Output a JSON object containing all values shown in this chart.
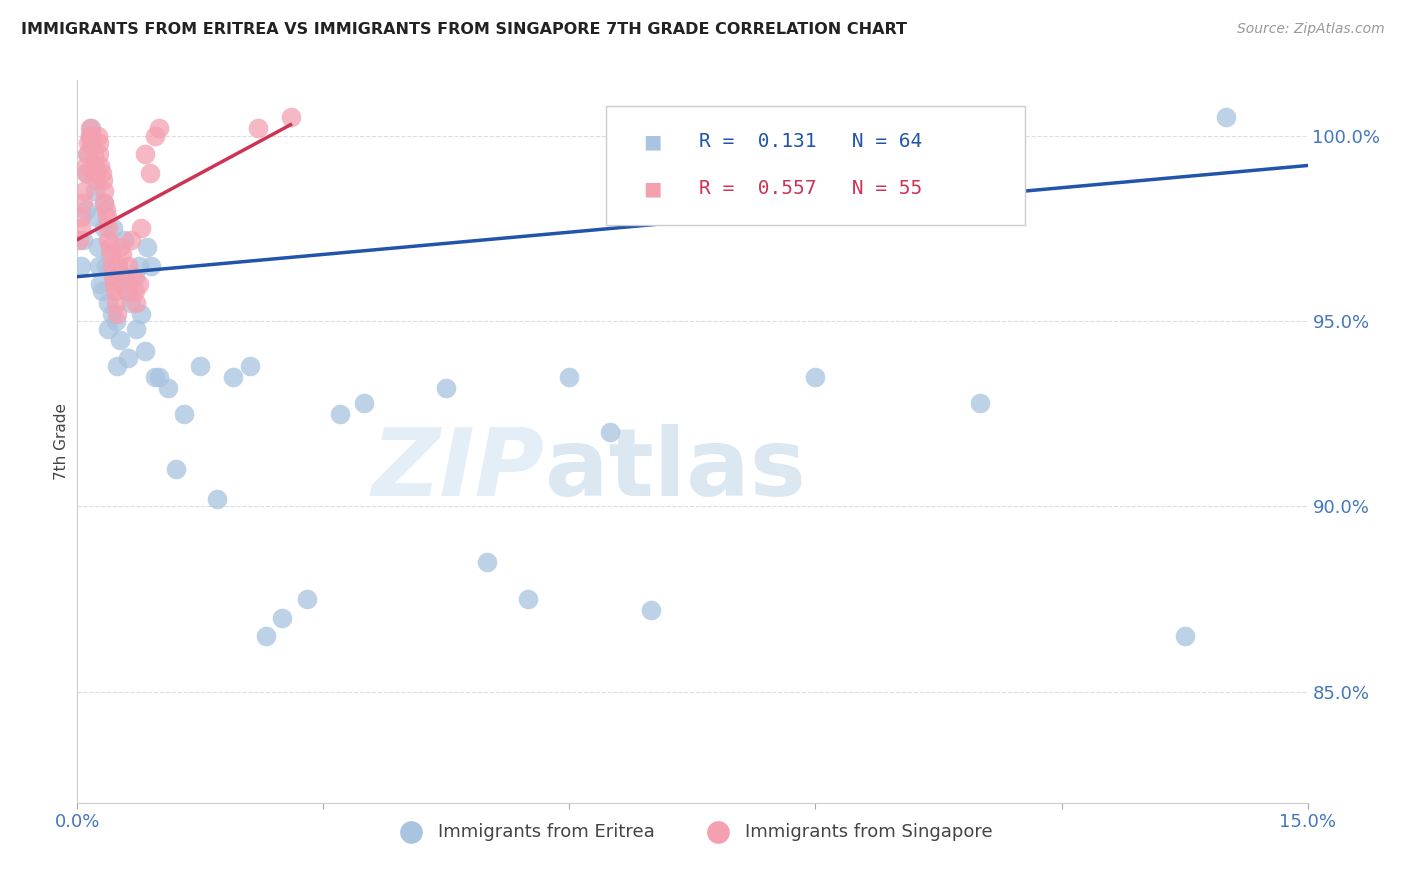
{
  "title": "IMMIGRANTS FROM ERITREA VS IMMIGRANTS FROM SINGAPORE 7TH GRADE CORRELATION CHART",
  "source": "Source: ZipAtlas.com",
  "ylabel": "7th Grade",
  "xlim": [
    0.0,
    15.0
  ],
  "ylim": [
    82.0,
    101.5
  ],
  "yticks": [
    85.0,
    90.0,
    95.0,
    100.0
  ],
  "ytick_labels": [
    "85.0%",
    "90.0%",
    "95.0%",
    "100.0%"
  ],
  "legend_eritrea": "Immigrants from Eritrea",
  "legend_singapore": "Immigrants from Singapore",
  "R_eritrea": 0.131,
  "N_eritrea": 64,
  "R_singapore": 0.557,
  "N_singapore": 55,
  "color_eritrea": "#a8c4e0",
  "color_singapore": "#f4a0b0",
  "color_line_eritrea": "#2255aa",
  "color_line_singapore": "#cc3355",
  "watermark_zip": "ZIP",
  "watermark_atlas": "atlas",
  "line_eritrea_x0": 0.0,
  "line_eritrea_y0": 96.2,
  "line_eritrea_x1": 15.0,
  "line_eritrea_y1": 99.2,
  "line_singapore_x0": 0.0,
  "line_singapore_y0": 97.2,
  "line_singapore_x1": 2.6,
  "line_singapore_y1": 100.3,
  "eritrea_x": [
    0.05,
    0.07,
    0.1,
    0.12,
    0.13,
    0.15,
    0.17,
    0.18,
    0.2,
    0.22,
    0.23,
    0.25,
    0.27,
    0.28,
    0.3,
    0.32,
    0.33,
    0.35,
    0.37,
    0.38,
    0.4,
    0.42,
    0.43,
    0.45,
    0.47,
    0.48,
    0.5,
    0.52,
    0.55,
    0.57,
    0.6,
    0.62,
    0.65,
    0.7,
    0.72,
    0.75,
    0.78,
    0.82,
    0.85,
    0.9,
    0.95,
    1.0,
    1.1,
    1.2,
    1.3,
    1.5,
    1.7,
    1.9,
    2.1,
    2.3,
    2.5,
    2.8,
    3.2,
    3.5,
    4.5,
    5.0,
    5.5,
    6.0,
    6.5,
    7.0,
    9.0,
    11.0,
    13.5,
    14.0
  ],
  "eritrea_y": [
    96.5,
    97.2,
    98.0,
    99.0,
    99.5,
    100.0,
    100.2,
    99.8,
    99.2,
    98.5,
    97.8,
    97.0,
    96.5,
    96.0,
    95.8,
    97.5,
    98.2,
    96.5,
    95.5,
    94.8,
    96.8,
    95.2,
    97.5,
    96.2,
    95.0,
    93.8,
    96.5,
    94.5,
    96.0,
    97.2,
    95.8,
    94.0,
    95.5,
    96.2,
    94.8,
    96.5,
    95.2,
    94.2,
    97.0,
    96.5,
    93.5,
    93.5,
    93.2,
    91.0,
    92.5,
    93.8,
    90.2,
    93.5,
    93.8,
    86.5,
    87.0,
    87.5,
    92.5,
    92.8,
    93.2,
    88.5,
    87.5,
    93.5,
    92.0,
    87.2,
    93.5,
    92.8,
    86.5,
    100.5
  ],
  "singapore_x": [
    0.02,
    0.04,
    0.05,
    0.07,
    0.08,
    0.1,
    0.11,
    0.12,
    0.13,
    0.15,
    0.16,
    0.17,
    0.18,
    0.2,
    0.21,
    0.22,
    0.23,
    0.25,
    0.26,
    0.27,
    0.28,
    0.3,
    0.31,
    0.32,
    0.33,
    0.35,
    0.36,
    0.37,
    0.38,
    0.4,
    0.41,
    0.42,
    0.43,
    0.45,
    0.46,
    0.47,
    0.48,
    0.5,
    0.52,
    0.55,
    0.57,
    0.6,
    0.62,
    0.65,
    0.68,
    0.7,
    0.72,
    0.75,
    0.78,
    0.82,
    0.88,
    0.95,
    1.0,
    2.2,
    2.6
  ],
  "singapore_y": [
    97.2,
    97.5,
    97.8,
    98.2,
    98.5,
    99.0,
    99.2,
    99.5,
    99.8,
    100.0,
    100.2,
    99.8,
    100.0,
    99.5,
    99.2,
    99.0,
    98.8,
    100.0,
    99.8,
    99.5,
    99.2,
    99.0,
    98.8,
    98.5,
    98.2,
    98.0,
    97.8,
    97.5,
    97.2,
    97.0,
    96.8,
    96.5,
    96.2,
    96.0,
    95.8,
    95.5,
    95.2,
    96.5,
    97.0,
    96.8,
    96.2,
    95.8,
    96.5,
    97.2,
    96.2,
    95.8,
    95.5,
    96.0,
    97.5,
    99.5,
    99.0,
    100.0,
    100.2,
    100.2,
    100.5
  ]
}
